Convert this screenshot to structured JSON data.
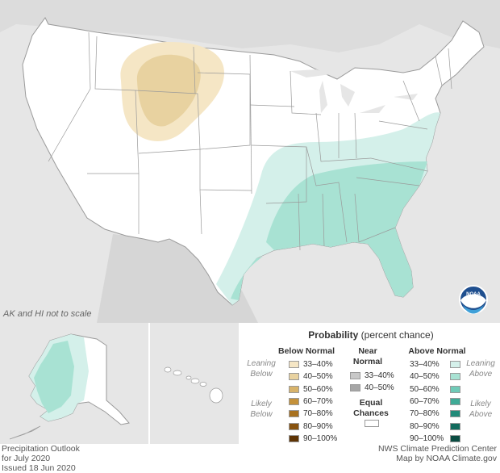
{
  "inset_note": "AK and HI not to scale",
  "legend": {
    "title": "Probability",
    "title_suffix": "(percent chance)",
    "below": {
      "heading": "Below Normal",
      "side_top": "Leaning Below",
      "side_bottom": "Likely Below",
      "ranges": [
        "33–40%",
        "40–50%",
        "50–60%",
        "60–70%",
        "70–80%",
        "80–90%",
        "90–100%"
      ],
      "colors": [
        "#f5e6c5",
        "#e8d2a0",
        "#d8b36a",
        "#c4913a",
        "#a8711f",
        "#87520f",
        "#5e3405"
      ]
    },
    "near": {
      "heading": "Near Normal",
      "ranges": [
        "33–40%",
        "40–50%"
      ],
      "colors": [
        "#c8c8c8",
        "#a6a6a6"
      ]
    },
    "equal": {
      "label": "Equal Chances"
    },
    "above": {
      "heading": "Above Normal",
      "side_top": "Leaning Above",
      "side_bottom": "Likely Above",
      "ranges": [
        "33–40%",
        "40–50%",
        "50–60%",
        "60–70%",
        "70–80%",
        "80–90%",
        "90–100%"
      ],
      "colors": [
        "#d4f0ea",
        "#a8e2d3",
        "#6fcab7",
        "#3fab97",
        "#218a79",
        "#126b5d",
        "#0a4c42"
      ]
    }
  },
  "footer_left": [
    "Precipitation Outlook",
    "for July 2020",
    "Issued 18 Jun 2020"
  ],
  "footer_right": [
    "NWS Climate Prediction Center",
    "Map by NOAA Climate.gov"
  ],
  "logo_text": "NOAA"
}
